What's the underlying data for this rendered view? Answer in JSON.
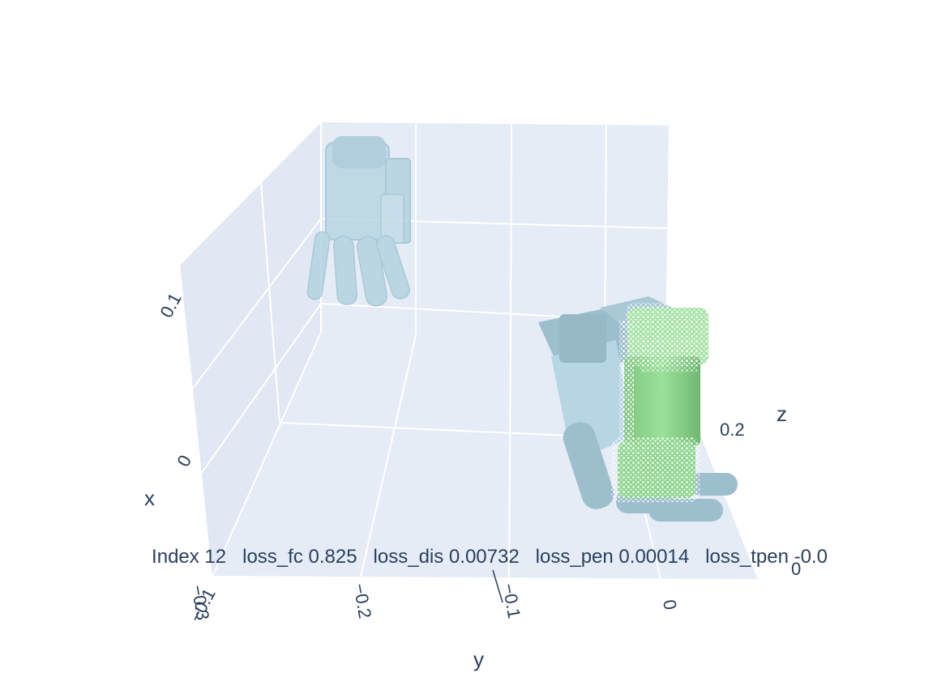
{
  "chart_data": {
    "type": "scatter3d",
    "title": "",
    "annotation": "Index 12   loss_fc 0.825   loss_dis 0.00732   loss_pen 0.00014   loss_tpen -0.0",
    "axes": {
      "x": {
        "title": "x",
        "tick_labels": [
          "−0.1",
          "0",
          "0.1"
        ]
      },
      "y": {
        "title": "y",
        "tick_labels": [
          "−0.3",
          "−0.2",
          "−0.1",
          "0"
        ]
      },
      "z": {
        "title": "z",
        "tick_labels": [
          "0",
          "0.2"
        ]
      }
    },
    "grid": true,
    "background_color": "#e5ecf6",
    "gridline_color": "#ffffff",
    "font_color": "#2a3f5f",
    "objects": [
      {
        "name": "hand mesh (reference)",
        "kind": "mesh",
        "color": "#add8e6",
        "opacity": 0.6
      },
      {
        "name": "hand mesh (grasp)",
        "kind": "mesh",
        "color": "#add8e6",
        "opacity": 1.0
      },
      {
        "name": "object mesh",
        "kind": "mesh",
        "color": "#90ee90",
        "opacity": 1.0
      },
      {
        "name": "object point cloud",
        "kind": "points",
        "color": "#ffffff"
      }
    ]
  }
}
